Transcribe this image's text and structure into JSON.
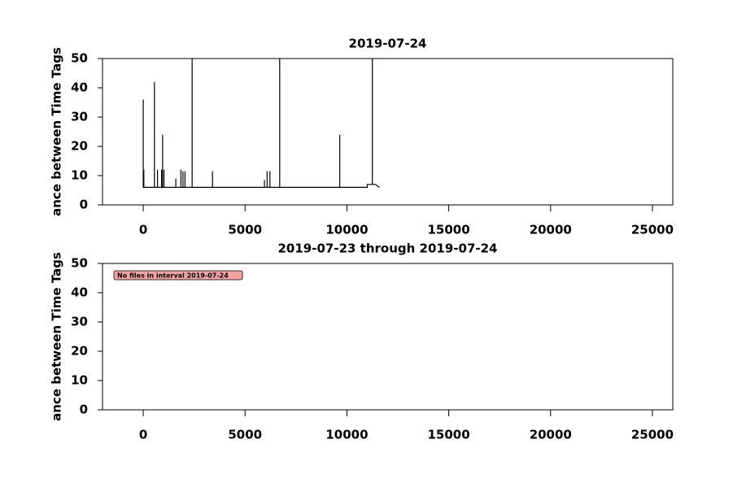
{
  "chart_data": [
    {
      "type": "line",
      "title": "2019-07-24",
      "y_label": "ance between Time Tags",
      "x": [
        0,
        0,
        0,
        30,
        30,
        30,
        550,
        550,
        550,
        700,
        700,
        700,
        900,
        900,
        900,
        950,
        950,
        950,
        1020,
        1020,
        1020,
        1600,
        1600,
        1600,
        1850,
        1850,
        1850,
        1950,
        1950,
        1950,
        2050,
        2050,
        2050,
        2400,
        2400,
        2400,
        3400,
        3400,
        3400,
        5950,
        5950,
        5950,
        6080,
        6080,
        6080,
        6220,
        6220,
        6220,
        6700,
        6700,
        6700,
        9650,
        9650,
        9650,
        11000,
        11000,
        11250,
        11250,
        11250,
        11400,
        11600
      ],
      "values": [
        6,
        36,
        6,
        6,
        12,
        6,
        6,
        42,
        6,
        6,
        12,
        6,
        6,
        12,
        6,
        6,
        24,
        6,
        6,
        12,
        6,
        6,
        9,
        6,
        6,
        12,
        6,
        6,
        11.5,
        6,
        6,
        11.5,
        6,
        6,
        50,
        6,
        6,
        11.5,
        6,
        6,
        8.5,
        6,
        6,
        11.5,
        6,
        6,
        11.5,
        6,
        6,
        50,
        6,
        6,
        24,
        6,
        6,
        7,
        7,
        50,
        7,
        7,
        6
      ],
      "color": "#000000",
      "xlim": [
        -2000,
        26000
      ],
      "xticks": [
        0,
        5000,
        10000,
        15000,
        20000,
        25000
      ],
      "ylim": [
        0,
        50
      ],
      "yticks": [
        0,
        10,
        20,
        30,
        40,
        50
      ]
    },
    {
      "type": "line",
      "title": "2019-07-23 through 2019-07-24",
      "y_label": "ance between Time Tags",
      "x": [],
      "values": [],
      "color": "#000000",
      "annotation": "No files in interval 2019-07-24",
      "xlim": [
        -2000,
        26000
      ],
      "xticks": [
        0,
        5000,
        10000,
        15000,
        20000,
        25000
      ],
      "ylim": [
        0,
        50
      ],
      "yticks": [
        0,
        10,
        20,
        30,
        40,
        50
      ]
    }
  ]
}
